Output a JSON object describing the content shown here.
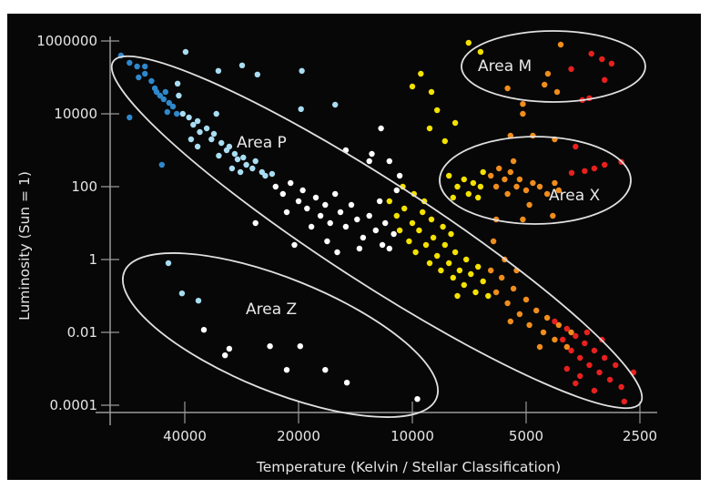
{
  "chart_data": {
    "type": "scatter",
    "title": "",
    "xlabel": "Temperature (Kelvin / Stellar Classification)",
    "ylabel": "Luminosity (Sun = 1)",
    "x_scale": "log2, reversed",
    "y_scale": "log10",
    "xlim": [
      62000,
      2450
    ],
    "ylim_log10": [
      -4.3,
      6.0
    ],
    "grid": false,
    "x_ticks": [
      {
        "label": "40000",
        "value": 40000
      },
      {
        "label": "20000",
        "value": 20000
      },
      {
        "label": "10000",
        "value": 10000
      },
      {
        "label": "5000",
        "value": 5000
      },
      {
        "label": "2500",
        "value": 2500
      }
    ],
    "y_ticks": [
      {
        "label": "1000000",
        "log10_value": 6
      },
      {
        "label": "10000",
        "log10_value": 4
      },
      {
        "label": "100",
        "log10_value": 2
      },
      {
        "label": "1",
        "log10_value": 0
      },
      {
        "label": "0.01",
        "log10_value": -2
      },
      {
        "label": "0.0001",
        "log10_value": -4
      }
    ],
    "annotations": [
      {
        "label": "Area P",
        "region": "main sequence diagonal"
      },
      {
        "label": "Area M",
        "region": "top-right (supergiants)"
      },
      {
        "label": "Area X",
        "region": "right-middle (giants)"
      },
      {
        "label": "Area Z",
        "region": "bottom-left (white dwarfs)"
      }
    ],
    "point_format": "[temperature_K, log10_luminosity]",
    "series": [
      {
        "name": "blue",
        "color": "#2f88cc",
        "points": [
          [
            59000,
            5.6
          ],
          [
            56000,
            5.4
          ],
          [
            53500,
            5.3
          ],
          [
            51000,
            5.3
          ],
          [
            51000,
            5.1
          ],
          [
            49000,
            4.9
          ],
          [
            48000,
            4.7
          ],
          [
            46500,
            4.5
          ],
          [
            45500,
            4.4
          ],
          [
            44000,
            4.3
          ],
          [
            43000,
            4.2
          ],
          [
            42000,
            4.0
          ],
          [
            56000,
            3.9
          ],
          [
            46000,
            2.6
          ],
          [
            47500,
            4.6
          ],
          [
            45000,
            4.6
          ],
          [
            53000,
            5.0
          ],
          [
            44500,
            4.05
          ]
        ]
      },
      {
        "name": "light-blue",
        "color": "#a9ddf2",
        "points": [
          [
            39800,
            5.7
          ],
          [
            32600,
            5.18
          ],
          [
            28200,
            5.33
          ],
          [
            25700,
            5.08
          ],
          [
            19600,
            5.18
          ],
          [
            16000,
            4.25
          ],
          [
            19700,
            4.13
          ],
          [
            33000,
            4.0
          ],
          [
            41800,
            4.83
          ],
          [
            41500,
            4.5
          ],
          [
            40500,
            4.0
          ],
          [
            39000,
            3.9
          ],
          [
            38000,
            3.7
          ],
          [
            37000,
            3.8
          ],
          [
            36500,
            3.5
          ],
          [
            35000,
            3.6
          ],
          [
            34000,
            3.3
          ],
          [
            33500,
            3.45
          ],
          [
            32000,
            3.2
          ],
          [
            31000,
            3.0
          ],
          [
            30500,
            3.1
          ],
          [
            29500,
            2.9
          ],
          [
            29000,
            2.75
          ],
          [
            28000,
            2.8
          ],
          [
            27500,
            2.6
          ],
          [
            26500,
            2.5
          ],
          [
            26000,
            2.7
          ],
          [
            25000,
            2.4
          ],
          [
            24500,
            2.3
          ],
          [
            23500,
            2.35
          ],
          [
            37000,
            3.1
          ],
          [
            30000,
            2.5
          ],
          [
            32500,
            2.85
          ],
          [
            28500,
            2.4
          ],
          [
            38500,
            3.3
          ],
          [
            44200,
            -0.1
          ],
          [
            40700,
            -0.93
          ],
          [
            36800,
            -1.13
          ]
        ]
      },
      {
        "name": "white",
        "color": "#ffffff",
        "points": [
          [
            23000,
            2.0
          ],
          [
            22000,
            1.8
          ],
          [
            21000,
            2.1
          ],
          [
            20000,
            1.6
          ],
          [
            19500,
            1.9
          ],
          [
            19000,
            1.4
          ],
          [
            18000,
            1.7
          ],
          [
            17500,
            1.2
          ],
          [
            17000,
            1.5
          ],
          [
            16500,
            1.0
          ],
          [
            16000,
            1.8
          ],
          [
            15500,
            1.3
          ],
          [
            15000,
            0.9
          ],
          [
            14500,
            1.5
          ],
          [
            14000,
            1.1
          ],
          [
            13500,
            0.6
          ],
          [
            13000,
            1.2
          ],
          [
            12500,
            0.8
          ],
          [
            12000,
            0.4
          ],
          [
            11800,
            1.0
          ],
          [
            11500,
            0.3
          ],
          [
            11200,
            0.7
          ],
          [
            21500,
            1.3
          ],
          [
            18500,
            0.9
          ],
          [
            16800,
            0.5
          ],
          [
            13800,
            0.3
          ],
          [
            12200,
            1.6
          ],
          [
            11000,
            1.9
          ],
          [
            20500,
            0.4
          ],
          [
            26000,
            1.0
          ],
          [
            15800,
            0.2
          ],
          [
            10800,
            2.3
          ],
          [
            15000,
            3.0
          ],
          [
            13000,
            2.7
          ],
          [
            11500,
            2.7
          ],
          [
            12100,
            3.6
          ],
          [
            12800,
            2.9
          ],
          [
            35600,
            -1.93
          ],
          [
            30500,
            -2.45
          ],
          [
            31300,
            -2.63
          ],
          [
            23800,
            -2.38
          ],
          [
            19800,
            -2.38
          ],
          [
            21500,
            -3.03
          ],
          [
            17000,
            -3.03
          ],
          [
            14900,
            -3.38
          ],
          [
            9700,
            -3.83
          ]
        ]
      },
      {
        "name": "yellow",
        "color": "#f4e200",
        "points": [
          [
            11500,
            1.6
          ],
          [
            11000,
            1.2
          ],
          [
            10800,
            0.8
          ],
          [
            10500,
            1.4
          ],
          [
            10200,
            0.5
          ],
          [
            10000,
            1.0
          ],
          [
            9800,
            0.2
          ],
          [
            9600,
            0.8
          ],
          [
            9400,
            1.3
          ],
          [
            9200,
            0.4
          ],
          [
            9000,
            -0.1
          ],
          [
            8800,
            0.6
          ],
          [
            8600,
            0.1
          ],
          [
            8400,
            -0.3
          ],
          [
            8200,
            0.4
          ],
          [
            8000,
            -0.1
          ],
          [
            7800,
            -0.5
          ],
          [
            7700,
            0.2
          ],
          [
            7500,
            -0.3
          ],
          [
            7300,
            -0.7
          ],
          [
            7200,
            0.0
          ],
          [
            7000,
            -0.4
          ],
          [
            6800,
            -0.9
          ],
          [
            6700,
            -0.2
          ],
          [
            6500,
            -0.6
          ],
          [
            10600,
            2.0
          ],
          [
            9900,
            1.8
          ],
          [
            9300,
            1.6
          ],
          [
            8900,
            1.1
          ],
          [
            8300,
            0.9
          ],
          [
            7900,
            0.7
          ],
          [
            7600,
            -1.0
          ],
          [
            6300,
            -1.0
          ],
          [
            8000,
            2.3
          ],
          [
            7600,
            2.0
          ],
          [
            7300,
            2.2
          ],
          [
            7100,
            1.8
          ],
          [
            6900,
            2.1
          ],
          [
            6700,
            1.7
          ],
          [
            6500,
            2.4
          ],
          [
            7800,
            1.7
          ],
          [
            6600,
            2.0
          ],
          [
            9500,
            5.1
          ],
          [
            10000,
            4.75
          ],
          [
            8900,
            4.6
          ],
          [
            8600,
            4.1
          ],
          [
            9000,
            3.6
          ],
          [
            7700,
            3.75
          ],
          [
            7100,
            5.95
          ],
          [
            6600,
            5.7
          ],
          [
            8200,
            3.25
          ]
        ]
      },
      {
        "name": "orange",
        "color": "#f08d1c",
        "points": [
          [
            6200,
            -0.3
          ],
          [
            6000,
            -0.9
          ],
          [
            5800,
            -0.5
          ],
          [
            5600,
            -1.2
          ],
          [
            5400,
            -0.8
          ],
          [
            5200,
            -1.5
          ],
          [
            5000,
            -1.1
          ],
          [
            4900,
            -1.8
          ],
          [
            4700,
            -1.4
          ],
          [
            4500,
            -2.0
          ],
          [
            4400,
            -1.6
          ],
          [
            4200,
            -2.2
          ],
          [
            4100,
            -1.8
          ],
          [
            3900,
            -2.4
          ],
          [
            3800,
            -2.0
          ],
          [
            5500,
            -1.7
          ],
          [
            4600,
            -2.4
          ],
          [
            6100,
            0.5
          ],
          [
            5700,
            0.0
          ],
          [
            5300,
            -0.3
          ],
          [
            6200,
            2.3
          ],
          [
            6000,
            2.0
          ],
          [
            5900,
            2.5
          ],
          [
            5700,
            2.2
          ],
          [
            5600,
            1.8
          ],
          [
            5500,
            2.4
          ],
          [
            5300,
            2.0
          ],
          [
            5200,
            2.2
          ],
          [
            5000,
            1.9
          ],
          [
            4800,
            2.1
          ],
          [
            4600,
            2.0
          ],
          [
            4400,
            1.8
          ],
          [
            4200,
            2.1
          ],
          [
            4100,
            1.9
          ],
          [
            5400,
            2.7
          ],
          [
            4900,
            1.5
          ],
          [
            4050,
            5.9
          ],
          [
            4380,
            5.1
          ],
          [
            5600,
            4.7
          ],
          [
            4470,
            4.8
          ],
          [
            4140,
            4.6
          ],
          [
            5100,
            4.27
          ],
          [
            5100,
            4.0
          ],
          [
            5500,
            3.4
          ],
          [
            4800,
            3.4
          ],
          [
            4200,
            3.3
          ],
          [
            6000,
            1.1
          ],
          [
            4250,
            1.2
          ],
          [
            5100,
            1.1
          ]
        ]
      },
      {
        "name": "red",
        "color": "#e8201e",
        "points": [
          [
            4200,
            -1.7
          ],
          [
            4000,
            -2.2
          ],
          [
            3900,
            -1.9
          ],
          [
            3800,
            -2.5
          ],
          [
            3700,
            -2.1
          ],
          [
            3600,
            -2.7
          ],
          [
            3500,
            -2.3
          ],
          [
            3400,
            -2.9
          ],
          [
            3300,
            -2.5
          ],
          [
            3200,
            -3.1
          ],
          [
            3100,
            -2.7
          ],
          [
            3000,
            -3.3
          ],
          [
            2900,
            -2.9
          ],
          [
            2800,
            -3.5
          ],
          [
            3600,
            -3.2
          ],
          [
            3300,
            -3.6
          ],
          [
            2750,
            -3.9
          ],
          [
            3450,
            -2.0
          ],
          [
            3150,
            -2.2
          ],
          [
            2600,
            -3.1
          ],
          [
            3900,
            -3.0
          ],
          [
            3700,
            -3.4
          ],
          [
            3790,
            2.38
          ],
          [
            3500,
            2.43
          ],
          [
            3300,
            2.5
          ],
          [
            3100,
            2.6
          ],
          [
            2800,
            2.68
          ],
          [
            3700,
            3.1
          ],
          [
            3360,
            5.65
          ],
          [
            3150,
            5.5
          ],
          [
            2970,
            5.38
          ],
          [
            3800,
            5.23
          ],
          [
            3100,
            4.93
          ],
          [
            3400,
            4.43
          ],
          [
            3550,
            4.38
          ]
        ]
      }
    ]
  }
}
